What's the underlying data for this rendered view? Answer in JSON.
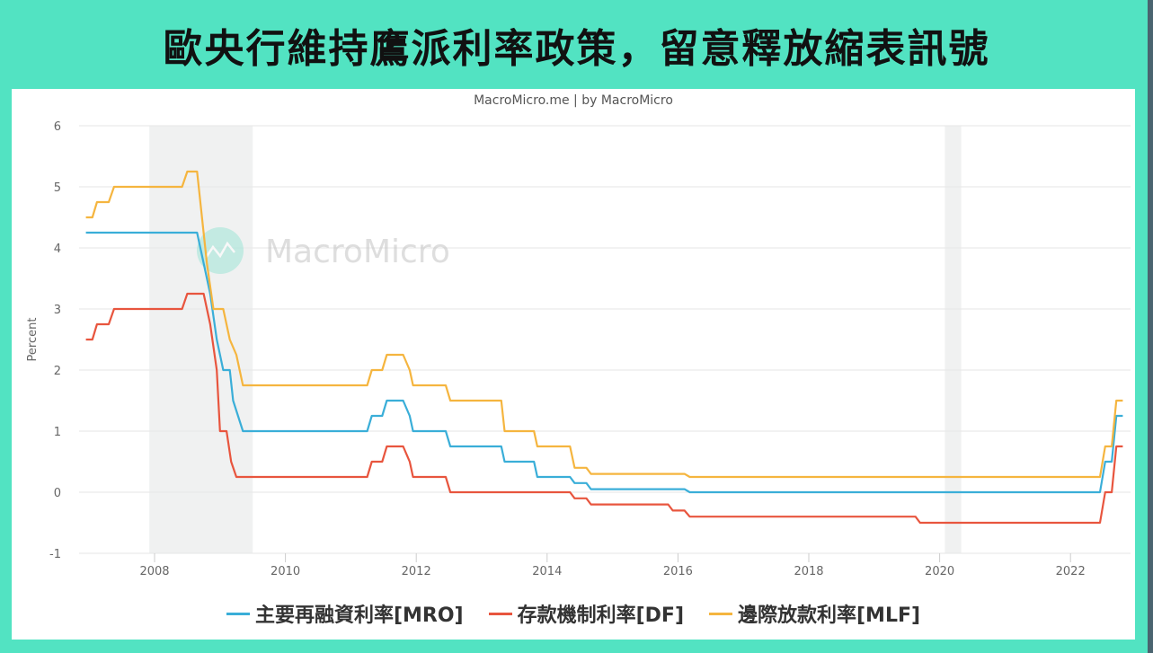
{
  "page": {
    "title": "歐央行維持鷹派利率政策，留意釋放縮表訊號",
    "credits": "MacroMicro.me | by MacroMicro",
    "watermark": "MacroMicro"
  },
  "colors": {
    "background": "#52e3c2",
    "mro": "#3aaed8",
    "df": "#e8553e",
    "mlf": "#f5b53f",
    "recession_band": "#f0f1f1"
  },
  "chart_data": {
    "type": "line",
    "title": "歐央行維持鷹派利率政策，留意釋放縮表訊號",
    "subtitle": "MacroMicro.me | by MacroMicro",
    "xlabel": "",
    "ylabel": "Percent",
    "ylim": [
      -1,
      6
    ],
    "yticks": [
      6,
      5,
      4,
      3,
      2,
      1,
      0,
      -1
    ],
    "xlim": [
      2006.8,
      2022.85
    ],
    "xticks": [
      "2008",
      "2010",
      "2012",
      "2014",
      "2016",
      "2018",
      "2020",
      "2022"
    ],
    "grid": true,
    "legend_position": "bottom",
    "shaded_bands": [
      {
        "from": 2007.92,
        "to": 2009.5
      },
      {
        "from": 2020.08,
        "to": 2020.33
      }
    ],
    "series": [
      {
        "name": "主要再融資利率[MRO]",
        "key": "mro",
        "points": [
          [
            2006.95,
            4.25
          ],
          [
            2008.65,
            4.25
          ],
          [
            2008.75,
            3.75
          ],
          [
            2008.85,
            3.25
          ],
          [
            2008.95,
            2.5
          ],
          [
            2009.05,
            2.0
          ],
          [
            2009.15,
            2.0
          ],
          [
            2009.2,
            1.5
          ],
          [
            2009.35,
            1.0
          ],
          [
            2011.25,
            1.0
          ],
          [
            2011.32,
            1.25
          ],
          [
            2011.48,
            1.25
          ],
          [
            2011.55,
            1.5
          ],
          [
            2011.8,
            1.5
          ],
          [
            2011.9,
            1.25
          ],
          [
            2011.95,
            1.0
          ],
          [
            2012.45,
            1.0
          ],
          [
            2012.52,
            0.75
          ],
          [
            2013.3,
            0.75
          ],
          [
            2013.35,
            0.5
          ],
          [
            2013.8,
            0.5
          ],
          [
            2013.85,
            0.25
          ],
          [
            2014.35,
            0.25
          ],
          [
            2014.42,
            0.15
          ],
          [
            2014.6,
            0.15
          ],
          [
            2014.67,
            0.05
          ],
          [
            2016.1,
            0.05
          ],
          [
            2016.18,
            0.0
          ],
          [
            2022.45,
            0.0
          ],
          [
            2022.53,
            0.5
          ],
          [
            2022.63,
            0.5
          ],
          [
            2022.7,
            1.25
          ],
          [
            2022.8,
            1.25
          ]
        ]
      },
      {
        "name": "存款機制利率[DF]",
        "key": "df",
        "points": [
          [
            2006.95,
            2.5
          ],
          [
            2007.05,
            2.5
          ],
          [
            2007.12,
            2.75
          ],
          [
            2007.3,
            2.75
          ],
          [
            2007.38,
            3.0
          ],
          [
            2008.42,
            3.0
          ],
          [
            2008.5,
            3.25
          ],
          [
            2008.75,
            3.25
          ],
          [
            2008.85,
            2.75
          ],
          [
            2008.95,
            2.0
          ],
          [
            2009.0,
            1.0
          ],
          [
            2009.1,
            1.0
          ],
          [
            2009.17,
            0.5
          ],
          [
            2009.25,
            0.25
          ],
          [
            2011.25,
            0.25
          ],
          [
            2011.32,
            0.5
          ],
          [
            2011.48,
            0.5
          ],
          [
            2011.55,
            0.75
          ],
          [
            2011.8,
            0.75
          ],
          [
            2011.9,
            0.5
          ],
          [
            2011.95,
            0.25
          ],
          [
            2012.45,
            0.25
          ],
          [
            2012.52,
            0.0
          ],
          [
            2014.35,
            0.0
          ],
          [
            2014.42,
            -0.1
          ],
          [
            2014.6,
            -0.1
          ],
          [
            2014.67,
            -0.2
          ],
          [
            2015.85,
            -0.2
          ],
          [
            2015.92,
            -0.3
          ],
          [
            2016.1,
            -0.3
          ],
          [
            2016.18,
            -0.4
          ],
          [
            2019.63,
            -0.4
          ],
          [
            2019.7,
            -0.5
          ],
          [
            2022.45,
            -0.5
          ],
          [
            2022.53,
            0.0
          ],
          [
            2022.63,
            0.0
          ],
          [
            2022.7,
            0.75
          ],
          [
            2022.8,
            0.75
          ]
        ]
      },
      {
        "name": "邊際放款利率[MLF]",
        "key": "mlf",
        "points": [
          [
            2006.95,
            4.5
          ],
          [
            2007.05,
            4.5
          ],
          [
            2007.12,
            4.75
          ],
          [
            2007.3,
            4.75
          ],
          [
            2007.38,
            5.0
          ],
          [
            2008.42,
            5.0
          ],
          [
            2008.5,
            5.25
          ],
          [
            2008.65,
            5.25
          ],
          [
            2008.8,
            3.75
          ],
          [
            2008.9,
            3.0
          ],
          [
            2009.05,
            3.0
          ],
          [
            2009.15,
            2.5
          ],
          [
            2009.25,
            2.25
          ],
          [
            2009.35,
            1.75
          ],
          [
            2011.25,
            1.75
          ],
          [
            2011.32,
            2.0
          ],
          [
            2011.48,
            2.0
          ],
          [
            2011.55,
            2.25
          ],
          [
            2011.8,
            2.25
          ],
          [
            2011.9,
            2.0
          ],
          [
            2011.95,
            1.75
          ],
          [
            2012.45,
            1.75
          ],
          [
            2012.52,
            1.5
          ],
          [
            2013.3,
            1.5
          ],
          [
            2013.35,
            1.0
          ],
          [
            2013.8,
            1.0
          ],
          [
            2013.85,
            0.75
          ],
          [
            2014.35,
            0.75
          ],
          [
            2014.42,
            0.4
          ],
          [
            2014.6,
            0.4
          ],
          [
            2014.67,
            0.3
          ],
          [
            2016.1,
            0.3
          ],
          [
            2016.18,
            0.25
          ],
          [
            2022.45,
            0.25
          ],
          [
            2022.53,
            0.75
          ],
          [
            2022.63,
            0.75
          ],
          [
            2022.7,
            1.5
          ],
          [
            2022.8,
            1.5
          ]
        ]
      }
    ]
  }
}
